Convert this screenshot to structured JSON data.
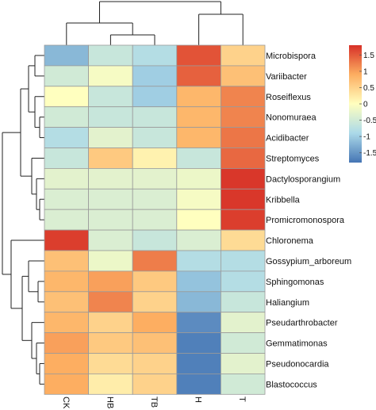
{
  "chart_data": {
    "type": "heatmap",
    "rows": [
      "Microbispora",
      "Variibacter",
      "Roseiflexus",
      "Nonomuraea",
      "Acidibacter",
      "Streptomyces",
      "Dactylosporangium",
      "Kribbella",
      "Promicromonospora",
      "Chloronema",
      "Gossypium_arboreum",
      "Sphingomonas",
      "Haliangium",
      "Pseudarthrobacter",
      "Gemmatimonas",
      "Pseudonocardia",
      "Blastococcus"
    ],
    "columns": [
      "CK",
      "HB",
      "TB",
      "H",
      "T"
    ],
    "values": [
      [
        -1.2,
        -0.6,
        -0.8,
        1.55,
        0.5
      ],
      [
        -0.5,
        -0.1,
        -1.0,
        1.45,
        0.7
      ],
      [
        0.0,
        -0.6,
        -1.0,
        0.8,
        1.2
      ],
      [
        -0.5,
        -0.6,
        -0.6,
        0.8,
        1.2
      ],
      [
        -0.8,
        -0.3,
        -0.6,
        0.8,
        1.3
      ],
      [
        -0.6,
        0.6,
        0.15,
        -0.6,
        1.4
      ],
      [
        -0.3,
        -0.3,
        -0.3,
        -0.2,
        1.75
      ],
      [
        -0.4,
        -0.4,
        -0.4,
        -0.1,
        1.75
      ],
      [
        -0.4,
        -0.4,
        -0.4,
        0.0,
        1.7
      ],
      [
        1.7,
        -0.4,
        -0.6,
        -0.4,
        0.4
      ],
      [
        0.7,
        -0.2,
        1.25,
        -0.8,
        -0.8
      ],
      [
        0.8,
        1.0,
        0.6,
        -1.1,
        -0.8
      ],
      [
        0.7,
        1.2,
        0.5,
        -1.2,
        -0.6
      ],
      [
        0.8,
        0.5,
        0.9,
        -1.6,
        -0.3
      ],
      [
        1.0,
        0.6,
        0.7,
        -1.7,
        -0.5
      ],
      [
        0.9,
        0.4,
        0.5,
        -1.7,
        -0.3
      ],
      [
        0.9,
        0.2,
        0.5,
        -1.7,
        -0.5
      ]
    ],
    "colorbar": {
      "ticks": [
        "1.5",
        "1",
        "0.5",
        "0",
        "-0.5",
        "-1",
        "-1.5"
      ],
      "tick_values": [
        1.5,
        1,
        0.5,
        0,
        -0.5,
        -1,
        -1.5
      ],
      "range": [
        -1.8,
        1.8
      ],
      "colors": {
        "low": "#4575b4",
        "mid": "#ffffbf",
        "high": "#d73027"
      }
    },
    "row_dendrogram": true,
    "column_dendrogram": true,
    "legend_position": "right"
  }
}
